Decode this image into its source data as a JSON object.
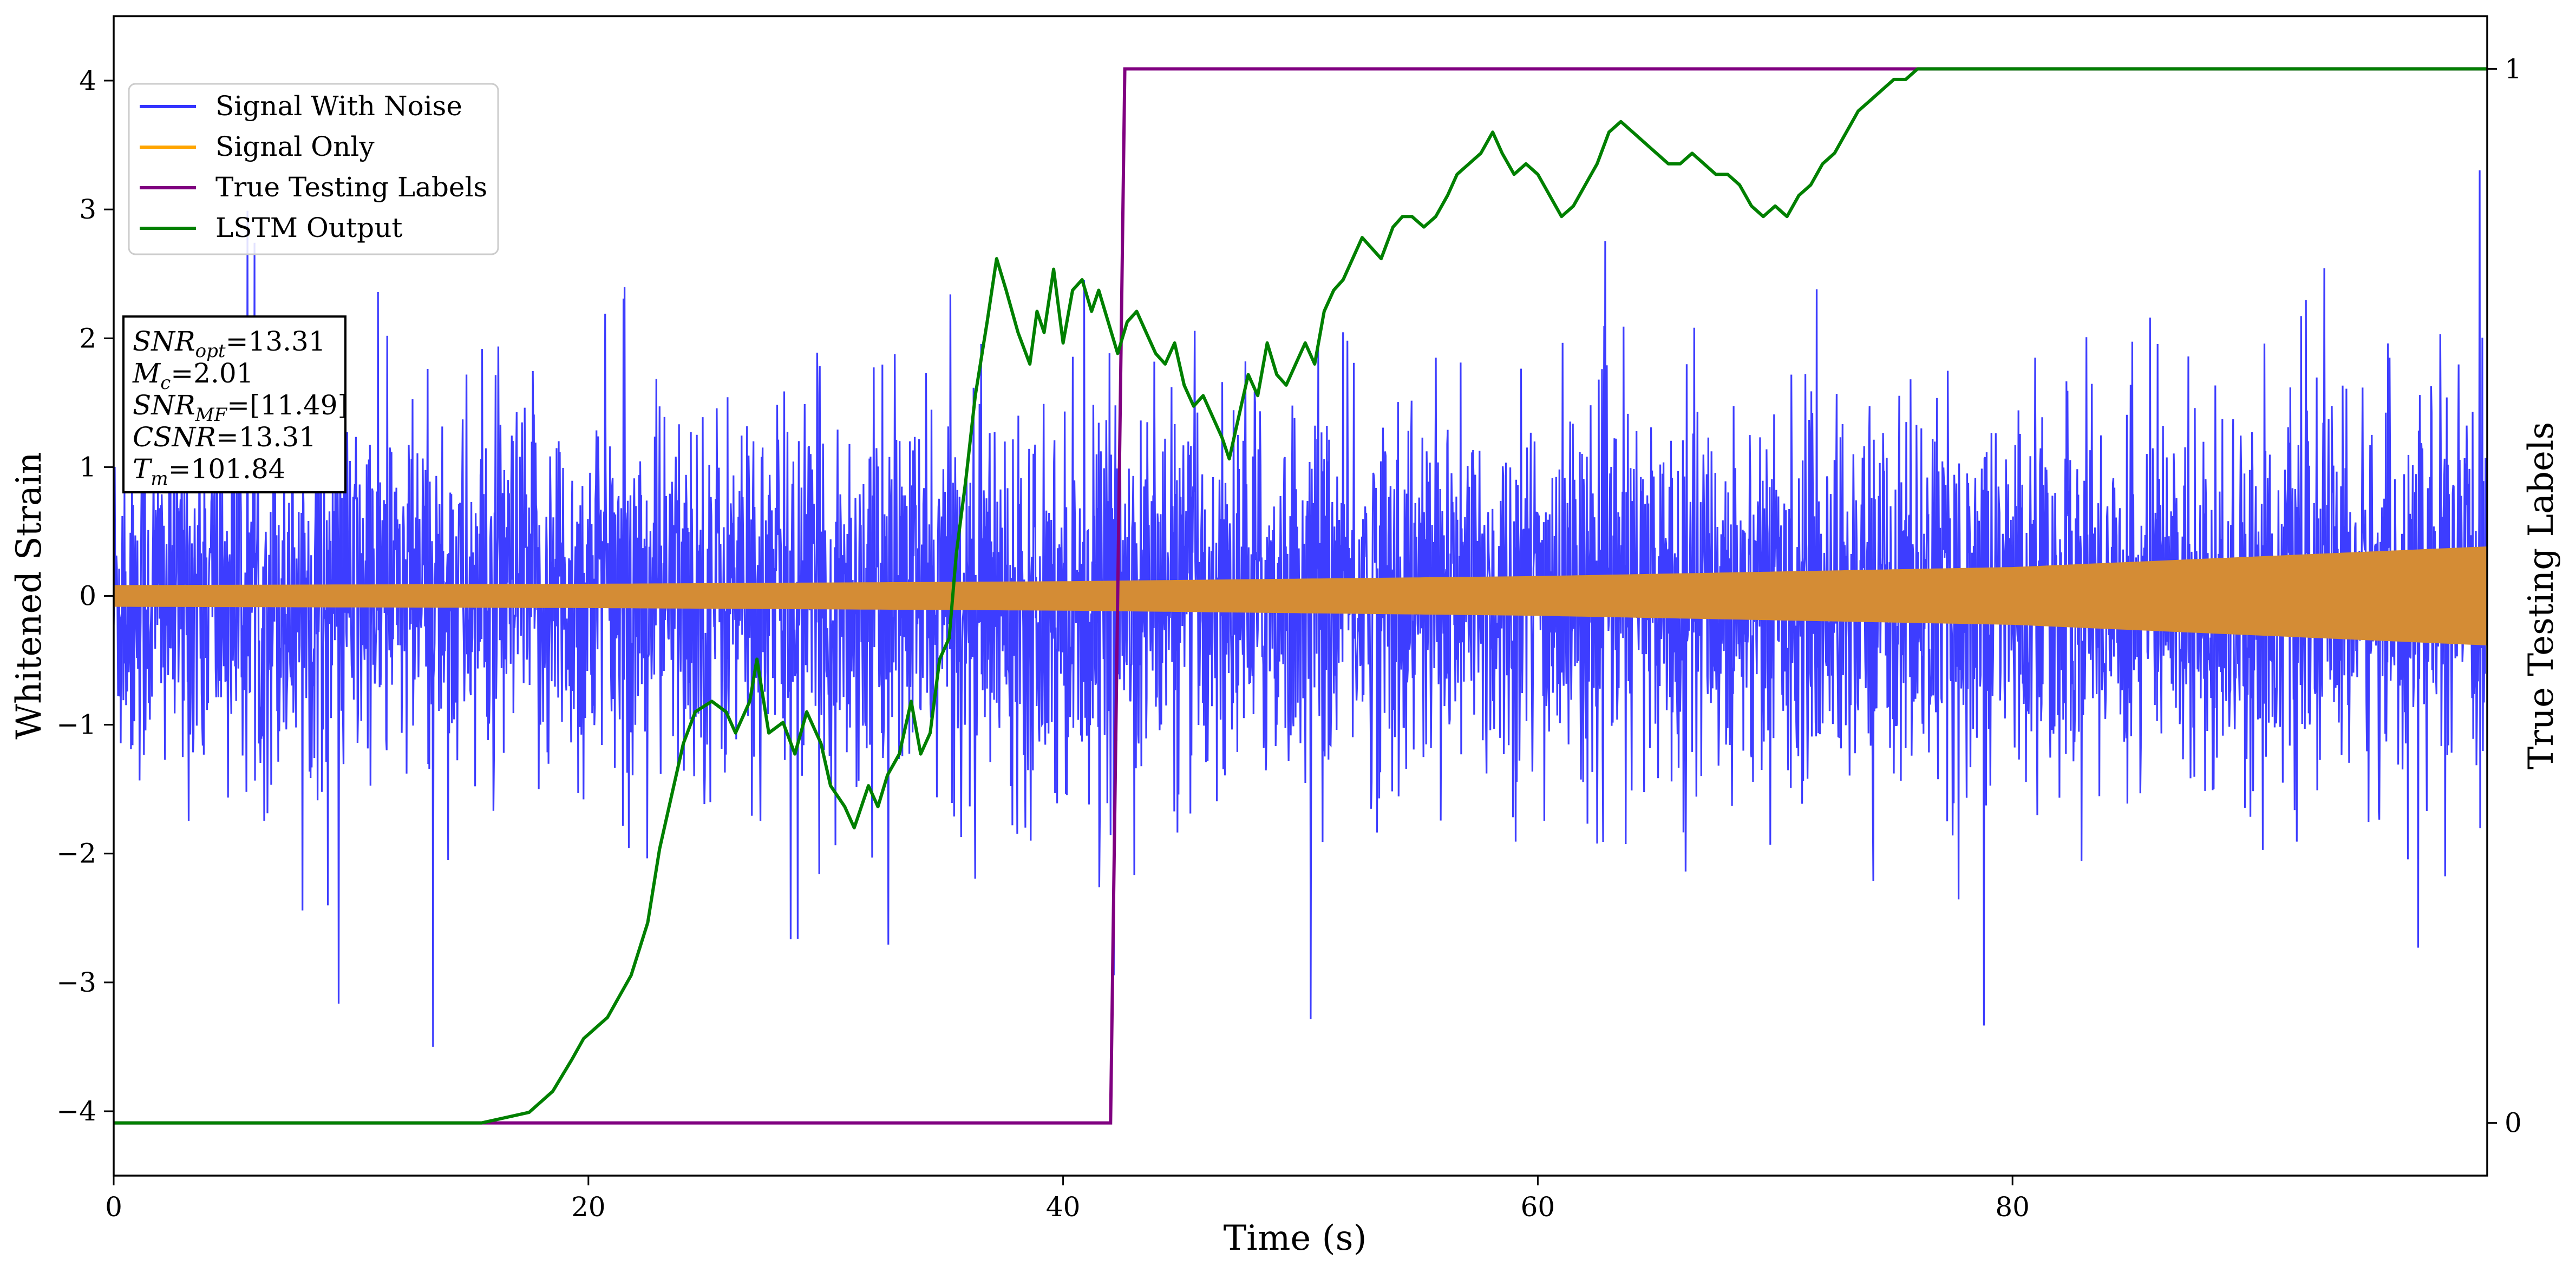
{
  "chart_data": {
    "type": "line",
    "xlabel": "Time (s)",
    "ylabel": "Whitened Strain",
    "y2label": "True Testing Labels",
    "xlim": [
      0,
      100
    ],
    "ylim": [
      -4.5,
      4.5
    ],
    "y2lim": [
      -0.05,
      1.05
    ],
    "x_ticks": [
      0,
      20,
      40,
      60,
      80
    ],
    "y_ticks": [
      -4,
      -3,
      -2,
      -1,
      0,
      1,
      2,
      3,
      4
    ],
    "y2_ticks": [
      0,
      1
    ],
    "tick_labels": {
      "x": [
        "0",
        "20",
        "40",
        "60",
        "80"
      ],
      "y": [
        "−4",
        "−3",
        "−2",
        "−1",
        "0",
        "1",
        "2",
        "3",
        "4"
      ],
      "y2": [
        "0",
        "1"
      ]
    },
    "grid": false,
    "legend_position": "top-left",
    "series": [
      {
        "name": "Signal With Noise",
        "axis": "left",
        "color": "#3333ff",
        "description_values": {
          "envelope_min": -3.5,
          "envelope_max": 4.05,
          "typical_amplitude": 1.2
        }
      },
      {
        "name": "Signal Only",
        "axis": "left",
        "color": "#ffa500",
        "envelope": {
          "x": [
            0,
            20,
            40,
            60,
            80,
            100
          ],
          "amplitude": [
            0.08,
            0.09,
            0.11,
            0.15,
            0.22,
            0.38
          ]
        }
      },
      {
        "name": "True Testing Labels",
        "axis": "right",
        "color": "#800080",
        "x": [
          0,
          42.0,
          42.6,
          100
        ],
        "y": [
          0,
          0,
          1,
          1
        ]
      },
      {
        "name": "LSTM Output",
        "axis": "right",
        "color": "#008000",
        "x": [
          0,
          15.5,
          17.5,
          18.5,
          19.3,
          19.8,
          20.8,
          21.3,
          21.8,
          22.5,
          23.0,
          23.5,
          24.0,
          24.5,
          25.2,
          25.8,
          26.2,
          26.8,
          27.1,
          27.6,
          28.2,
          28.7,
          29.2,
          29.8,
          30.2,
          30.8,
          31.2,
          31.8,
          32.2,
          32.6,
          33.1,
          33.6,
          34.0,
          34.4,
          34.8,
          35.2,
          35.5,
          35.9,
          36.3,
          36.8,
          37.2,
          37.6,
          38.1,
          38.6,
          38.9,
          39.2,
          39.6,
          40.0,
          40.4,
          40.8,
          41.2,
          41.5,
          41.9,
          42.3,
          42.7,
          43.1,
          43.5,
          43.9,
          44.3,
          44.7,
          45.1,
          45.5,
          45.9,
          46.3,
          46.7,
          47.0,
          47.4,
          47.8,
          48.2,
          48.6,
          49.0,
          49.4,
          49.8,
          50.2,
          50.6,
          51.0,
          51.4,
          51.8,
          52.2,
          52.6,
          53.0,
          53.4,
          53.9,
          54.3,
          54.7,
          55.2,
          55.7,
          56.2,
          56.6,
          57.1,
          57.6,
          58.1,
          58.5,
          59.0,
          59.5,
          60.0,
          60.5,
          61.0,
          61.5,
          62.0,
          62.5,
          63.0,
          63.5,
          64.0,
          64.5,
          65.0,
          65.5,
          66.0,
          66.5,
          67.0,
          67.5,
          68.0,
          68.5,
          69.0,
          69.5,
          70.0,
          70.5,
          71.0,
          71.5,
          72.0,
          72.5,
          73.0,
          73.5,
          74.0,
          74.5,
          75.0,
          75.5,
          76.0,
          76.5,
          77.0,
          77.5,
          78.0,
          79.0,
          80.0,
          82.0,
          84.0,
          86.0,
          88.0,
          90.0,
          92.0,
          94.0,
          96.0,
          98.0,
          100.0
        ],
        "y": [
          0.0,
          0.0,
          0.01,
          0.03,
          0.06,
          0.08,
          0.1,
          0.12,
          0.14,
          0.19,
          0.26,
          0.31,
          0.36,
          0.39,
          0.4,
          0.39,
          0.37,
          0.4,
          0.44,
          0.37,
          0.38,
          0.35,
          0.39,
          0.36,
          0.32,
          0.3,
          0.28,
          0.32,
          0.3,
          0.33,
          0.35,
          0.4,
          0.35,
          0.37,
          0.44,
          0.46,
          0.54,
          0.61,
          0.69,
          0.76,
          0.82,
          0.79,
          0.75,
          0.72,
          0.77,
          0.75,
          0.81,
          0.74,
          0.79,
          0.8,
          0.77,
          0.79,
          0.76,
          0.73,
          0.76,
          0.77,
          0.75,
          0.73,
          0.72,
          0.74,
          0.7,
          0.68,
          0.69,
          0.67,
          0.65,
          0.63,
          0.67,
          0.71,
          0.69,
          0.74,
          0.71,
          0.7,
          0.72,
          0.74,
          0.72,
          0.77,
          0.79,
          0.8,
          0.82,
          0.84,
          0.83,
          0.82,
          0.85,
          0.86,
          0.86,
          0.85,
          0.86,
          0.88,
          0.9,
          0.91,
          0.92,
          0.94,
          0.92,
          0.9,
          0.91,
          0.9,
          0.88,
          0.86,
          0.87,
          0.89,
          0.91,
          0.94,
          0.95,
          0.94,
          0.93,
          0.92,
          0.91,
          0.91,
          0.92,
          0.91,
          0.9,
          0.9,
          0.89,
          0.87,
          0.86,
          0.87,
          0.86,
          0.88,
          0.89,
          0.91,
          0.92,
          0.94,
          0.96,
          0.97,
          0.98,
          0.99,
          0.99,
          1.0,
          1.0,
          1.0,
          1.0,
          1.0,
          1.0,
          1.0,
          1.0,
          1.0,
          1.0,
          1.0,
          1.0,
          1.0,
          1.0,
          1.0,
          1.0,
          1.0
        ]
      }
    ],
    "annotation_box": {
      "snr_opt_label": "SNR",
      "snr_opt_sub": "opt",
      "snr_opt_value": "=13.31",
      "mc_label": "M",
      "mc_sub": "c",
      "mc_value": "=2.01",
      "snr_mf_label": "SNR",
      "snr_mf_sub": "MF",
      "snr_mf_value": "=[11.49]",
      "csnr_label": "CSNR",
      "csnr_value": "=13.31",
      "tm_label": "T",
      "tm_sub": "m",
      "tm_value": "=101.84"
    }
  }
}
